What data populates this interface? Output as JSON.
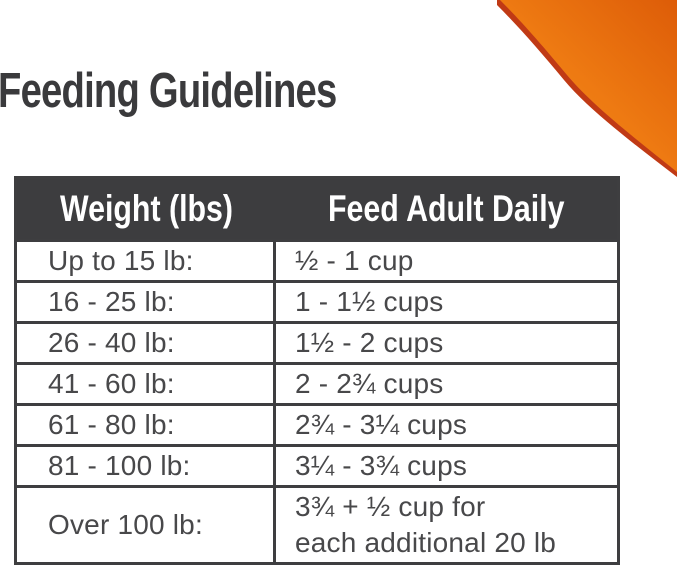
{
  "page": {
    "title": "Feeding Guidelines",
    "background": "#ffffff"
  },
  "decoration": {
    "name": "orange-corner-swoosh",
    "gradient_bright": "#f5921f",
    "gradient_mid": "#ee7a12",
    "gradient_deep": "#dd5c08",
    "edge_color": "#c03a15"
  },
  "table": {
    "headers": [
      "Weight (lbs)",
      "Feed Adult Daily"
    ],
    "rows": [
      {
        "weight": "Up to 15 lb:",
        "feed_lines": [
          "½ - 1 cup"
        ]
      },
      {
        "weight": "16 - 25 lb:",
        "feed_lines": [
          "1 - 1½ cups"
        ]
      },
      {
        "weight": "26 - 40 lb:",
        "feed_lines": [
          "1½ - 2 cups"
        ]
      },
      {
        "weight": "41 - 60 lb:",
        "feed_lines": [
          "2 - 2¾ cups"
        ]
      },
      {
        "weight": "61 - 80 lb:",
        "feed_lines": [
          "2¾ - 3¼ cups"
        ]
      },
      {
        "weight": "81 - 100 lb:",
        "feed_lines": [
          "3¼ - 3¾ cups"
        ]
      },
      {
        "weight": "Over 100 lb:",
        "feed_lines": [
          "3¾ + ½ cup for",
          "each additional 20 lb"
        ]
      }
    ],
    "colors": {
      "header_bg": "#3d3d3f",
      "header_text": "#ffffff",
      "body_text": "#48484a",
      "border": "#3e3e40"
    }
  }
}
